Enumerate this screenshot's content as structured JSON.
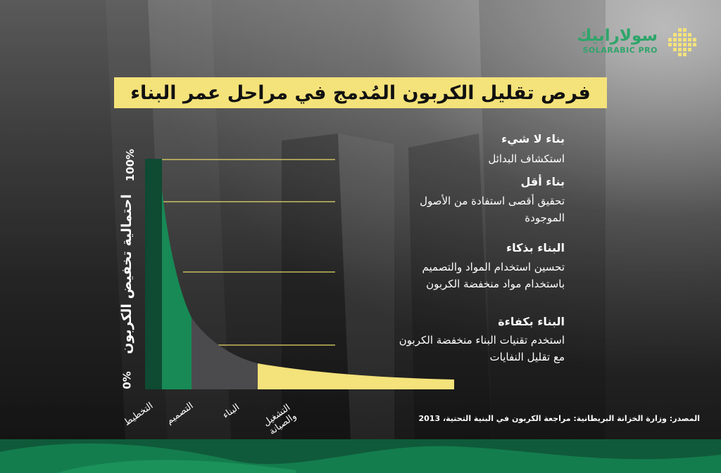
{
  "brand": {
    "name_ar": "سولارابيك",
    "name_en": "SOLARABIC PRO",
    "green": "#2ea56a",
    "yellow": "#f4e27a"
  },
  "title": "فرص تقليل الكربون المُدمج في مراحل عمر البناء",
  "chart_data": {
    "type": "area",
    "ylabel": "احتمالية تخفيض الكربون",
    "y_ticks": [
      "100%",
      "0%"
    ],
    "ylim": [
      0,
      100
    ],
    "categories": [
      "التخطيط",
      "التصميم",
      "البناء",
      "التشغيل والصيانة"
    ],
    "category_colors": [
      "#0f4a32",
      "#178a55",
      "#4b4b4d",
      "#f4e27a"
    ],
    "curve": "decreasing"
  },
  "stages": [
    {
      "heading": "بناء لا شيء",
      "lines": [
        "استكشاف البدائل"
      ]
    },
    {
      "heading": "بناء أقل",
      "lines": [
        "تحقيق أقصى استفادة من الأصول",
        "الموجودة"
      ]
    },
    {
      "heading": "البناء بذكاء",
      "lines": [
        "تحسين استخدام المواد والتصميم",
        "باستخدام مواد منخفضة الكربون"
      ]
    },
    {
      "heading": "البناء بكفاءة",
      "lines": [
        "استخدم تقنيات البناء منخفضة الكربون",
        "مع تقليل النفايات"
      ]
    }
  ],
  "source": "المصدر: وزارة الخزانة البريطانية: مراجعة الكربون في البنية التحتية، 2013"
}
